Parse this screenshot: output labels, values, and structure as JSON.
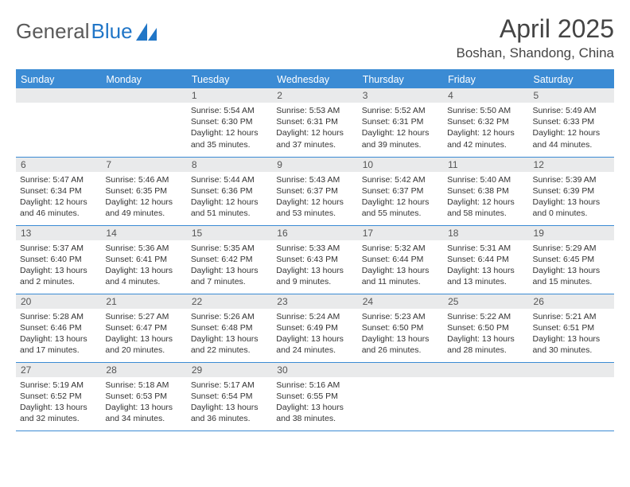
{
  "logo": {
    "textGray": "General",
    "textBlue": "Blue"
  },
  "title": "April 2025",
  "location": "Boshan, Shandong, China",
  "weekdays": [
    "Sunday",
    "Monday",
    "Tuesday",
    "Wednesday",
    "Thursday",
    "Friday",
    "Saturday"
  ],
  "colors": {
    "headerBg": "#3b8bd4",
    "headerText": "#ffffff",
    "dayNumBg": "#e9eaeb",
    "rowBorder": "#3b8bd4",
    "logoGray": "#5a5a5a",
    "logoBlue": "#2176c7"
  },
  "blankLead": 2,
  "days": [
    {
      "n": 1,
      "sunrise": "5:54 AM",
      "sunset": "6:30 PM",
      "daylight": "12 hours and 35 minutes."
    },
    {
      "n": 2,
      "sunrise": "5:53 AM",
      "sunset": "6:31 PM",
      "daylight": "12 hours and 37 minutes."
    },
    {
      "n": 3,
      "sunrise": "5:52 AM",
      "sunset": "6:31 PM",
      "daylight": "12 hours and 39 minutes."
    },
    {
      "n": 4,
      "sunrise": "5:50 AM",
      "sunset": "6:32 PM",
      "daylight": "12 hours and 42 minutes."
    },
    {
      "n": 5,
      "sunrise": "5:49 AM",
      "sunset": "6:33 PM",
      "daylight": "12 hours and 44 minutes."
    },
    {
      "n": 6,
      "sunrise": "5:47 AM",
      "sunset": "6:34 PM",
      "daylight": "12 hours and 46 minutes."
    },
    {
      "n": 7,
      "sunrise": "5:46 AM",
      "sunset": "6:35 PM",
      "daylight": "12 hours and 49 minutes."
    },
    {
      "n": 8,
      "sunrise": "5:44 AM",
      "sunset": "6:36 PM",
      "daylight": "12 hours and 51 minutes."
    },
    {
      "n": 9,
      "sunrise": "5:43 AM",
      "sunset": "6:37 PM",
      "daylight": "12 hours and 53 minutes."
    },
    {
      "n": 10,
      "sunrise": "5:42 AM",
      "sunset": "6:37 PM",
      "daylight": "12 hours and 55 minutes."
    },
    {
      "n": 11,
      "sunrise": "5:40 AM",
      "sunset": "6:38 PM",
      "daylight": "12 hours and 58 minutes."
    },
    {
      "n": 12,
      "sunrise": "5:39 AM",
      "sunset": "6:39 PM",
      "daylight": "13 hours and 0 minutes."
    },
    {
      "n": 13,
      "sunrise": "5:37 AM",
      "sunset": "6:40 PM",
      "daylight": "13 hours and 2 minutes."
    },
    {
      "n": 14,
      "sunrise": "5:36 AM",
      "sunset": "6:41 PM",
      "daylight": "13 hours and 4 minutes."
    },
    {
      "n": 15,
      "sunrise": "5:35 AM",
      "sunset": "6:42 PM",
      "daylight": "13 hours and 7 minutes."
    },
    {
      "n": 16,
      "sunrise": "5:33 AM",
      "sunset": "6:43 PM",
      "daylight": "13 hours and 9 minutes."
    },
    {
      "n": 17,
      "sunrise": "5:32 AM",
      "sunset": "6:44 PM",
      "daylight": "13 hours and 11 minutes."
    },
    {
      "n": 18,
      "sunrise": "5:31 AM",
      "sunset": "6:44 PM",
      "daylight": "13 hours and 13 minutes."
    },
    {
      "n": 19,
      "sunrise": "5:29 AM",
      "sunset": "6:45 PM",
      "daylight": "13 hours and 15 minutes."
    },
    {
      "n": 20,
      "sunrise": "5:28 AM",
      "sunset": "6:46 PM",
      "daylight": "13 hours and 17 minutes."
    },
    {
      "n": 21,
      "sunrise": "5:27 AM",
      "sunset": "6:47 PM",
      "daylight": "13 hours and 20 minutes."
    },
    {
      "n": 22,
      "sunrise": "5:26 AM",
      "sunset": "6:48 PM",
      "daylight": "13 hours and 22 minutes."
    },
    {
      "n": 23,
      "sunrise": "5:24 AM",
      "sunset": "6:49 PM",
      "daylight": "13 hours and 24 minutes."
    },
    {
      "n": 24,
      "sunrise": "5:23 AM",
      "sunset": "6:50 PM",
      "daylight": "13 hours and 26 minutes."
    },
    {
      "n": 25,
      "sunrise": "5:22 AM",
      "sunset": "6:50 PM",
      "daylight": "13 hours and 28 minutes."
    },
    {
      "n": 26,
      "sunrise": "5:21 AM",
      "sunset": "6:51 PM",
      "daylight": "13 hours and 30 minutes."
    },
    {
      "n": 27,
      "sunrise": "5:19 AM",
      "sunset": "6:52 PM",
      "daylight": "13 hours and 32 minutes."
    },
    {
      "n": 28,
      "sunrise": "5:18 AM",
      "sunset": "6:53 PM",
      "daylight": "13 hours and 34 minutes."
    },
    {
      "n": 29,
      "sunrise": "5:17 AM",
      "sunset": "6:54 PM",
      "daylight": "13 hours and 36 minutes."
    },
    {
      "n": 30,
      "sunrise": "5:16 AM",
      "sunset": "6:55 PM",
      "daylight": "13 hours and 38 minutes."
    }
  ]
}
